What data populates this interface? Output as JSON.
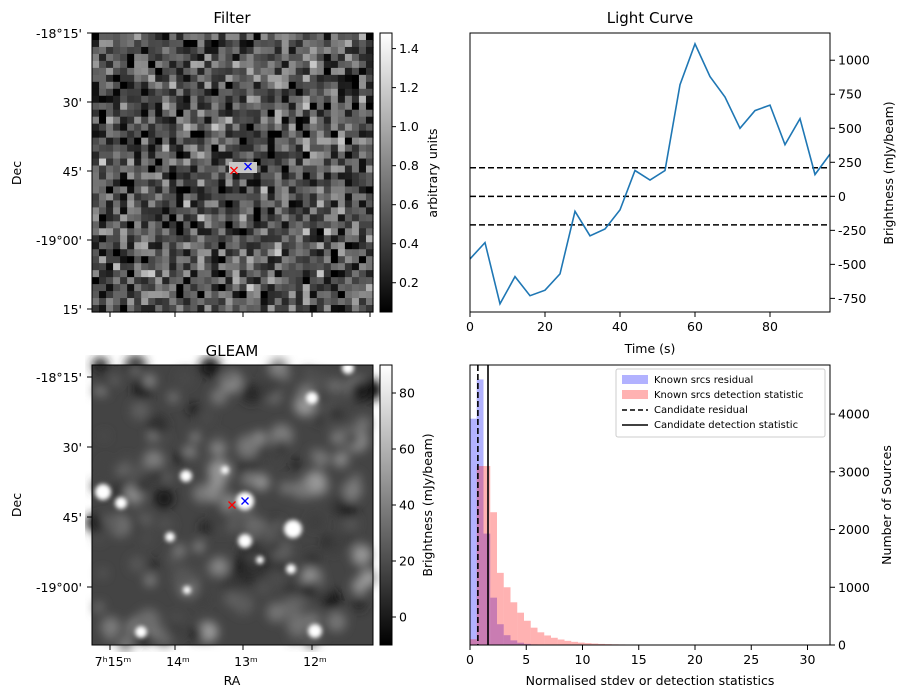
{
  "chart_data": [
    {
      "type": "heatmap",
      "title": "Filter",
      "ylabel": "Dec",
      "y_ticks": [
        "-18°15'",
        "30'",
        "45'",
        "-19°00'",
        "15'"
      ],
      "colorbar": {
        "label": "arbitrary units",
        "ticks": [
          "0.2",
          "0.4",
          "0.6",
          "0.8",
          "1.0",
          "1.2",
          "1.4"
        ],
        "range": [
          0.05,
          1.48
        ]
      },
      "markers": [
        {
          "symbol": "x",
          "color": "#ff0000"
        },
        {
          "symbol": "x",
          "color": "#0000ff"
        }
      ]
    },
    {
      "type": "line",
      "title": "Light Curve",
      "xlabel": "Time (s)",
      "ylabel": "Brightness (mJy/beam)",
      "xlim": [
        0,
        96
      ],
      "ylim": [
        -850,
        1200
      ],
      "x_ticks": [
        "0",
        "20",
        "40",
        "60",
        "80"
      ],
      "y_ticks": [
        "-750",
        "-500",
        "-250",
        "0",
        "250",
        "500",
        "750",
        "1000"
      ],
      "series": [
        {
          "color": "#1f77b4",
          "x": [
            0,
            4,
            8,
            12,
            16,
            20,
            24,
            28,
            32,
            36,
            40,
            44,
            48,
            52,
            56,
            60,
            64,
            68,
            72,
            76,
            80,
            84,
            88,
            92,
            96
          ],
          "y": [
            -460,
            -340,
            -790,
            -590,
            -730,
            -690,
            -570,
            -110,
            -290,
            -240,
            -100,
            190,
            120,
            190,
            820,
            1120,
            880,
            730,
            500,
            630,
            670,
            380,
            570,
            160,
            310
          ]
        }
      ],
      "hlines": [
        {
          "y": 210,
          "style": "dashed"
        },
        {
          "y": 0,
          "style": "dashed"
        },
        {
          "y": -210,
          "style": "dashed"
        }
      ]
    },
    {
      "type": "heatmap",
      "title": "GLEAM",
      "xlabel": "RA",
      "ylabel": "Dec",
      "x_ticks": [
        "7ʰ15ᵐ",
        "14ᵐ",
        "13ᵐ",
        "12ᵐ"
      ],
      "y_ticks": [
        "-18°15'",
        "30'",
        "45'",
        "-19°00'"
      ],
      "colorbar": {
        "label": "Brightness (mJy/beam)",
        "ticks": [
          "0",
          "20",
          "40",
          "60",
          "80"
        ],
        "range": [
          -10,
          90
        ]
      },
      "markers": [
        {
          "symbol": "x",
          "color": "#ff0000"
        },
        {
          "symbol": "x",
          "color": "#0000ff"
        }
      ]
    },
    {
      "type": "histogram",
      "xlabel": "Normalised stdev or detection statistics",
      "ylabel": "Number of Sources",
      "xlim": [
        0,
        32
      ],
      "ylim": [
        0,
        4850
      ],
      "x_ticks": [
        "0",
        "5",
        "10",
        "15",
        "20",
        "25",
        "30"
      ],
      "y_ticks": [
        "0",
        "1000",
        "2000",
        "3000",
        "4000"
      ],
      "bin_width": 0.6,
      "series": [
        {
          "name": "Known srcs residual",
          "color": "#0000ff",
          "alpha": 0.3,
          "counts": [
            3920,
            4600,
            1930,
            820,
            360,
            170,
            80,
            40,
            20,
            10,
            5
          ]
        },
        {
          "name": "Known srcs detection statistic",
          "color": "#ff0000",
          "alpha": 0.3,
          "counts": [
            100,
            3100,
            3100,
            2300,
            1250,
            1000,
            740,
            560,
            420,
            300,
            220,
            165,
            125,
            95,
            72,
            55,
            42,
            32,
            25,
            19,
            15,
            12,
            10,
            8,
            7,
            6,
            5,
            4,
            4,
            3,
            3,
            3,
            2,
            2,
            2,
            2,
            2,
            2,
            2,
            2,
            2,
            2,
            2,
            2,
            2,
            2,
            2,
            2,
            2,
            2
          ]
        }
      ],
      "vlines": [
        {
          "name": "Candidate residual",
          "x": 0.7,
          "style": "dashed"
        },
        {
          "name": "Candidate detection statistic",
          "x": 1.6,
          "style": "solid"
        }
      ],
      "legend": "top-right"
    }
  ]
}
